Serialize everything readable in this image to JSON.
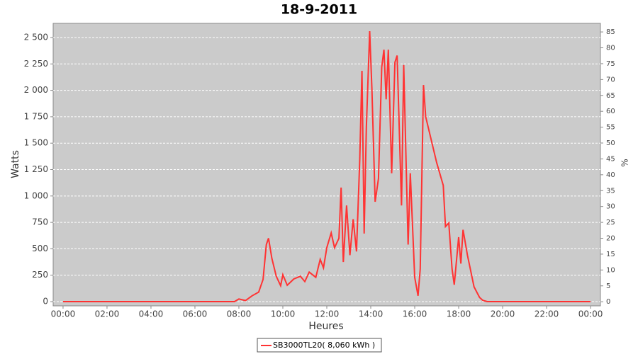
{
  "chart_data": {
    "type": "line",
    "title": "18-9-2011",
    "x_label": "Heures",
    "y_label": "Watts",
    "y2_label": "%",
    "x": [
      0,
      7.8,
      8.0,
      8.3,
      8.6,
      8.9,
      9.1,
      9.25,
      9.35,
      9.5,
      9.7,
      9.9,
      10.0,
      10.2,
      10.5,
      10.8,
      11.0,
      11.2,
      11.5,
      11.7,
      11.85,
      12.0,
      12.2,
      12.35,
      12.55,
      12.65,
      12.75,
      12.9,
      13.05,
      13.2,
      13.35,
      13.5,
      13.6,
      13.7,
      13.8,
      13.95,
      14.05,
      14.2,
      14.35,
      14.5,
      14.6,
      14.7,
      14.8,
      14.95,
      15.1,
      15.2,
      15.4,
      15.5,
      15.7,
      15.8,
      16.0,
      16.15,
      16.25,
      16.4,
      16.5,
      17.0,
      17.3,
      17.4,
      17.55,
      17.7,
      17.8,
      18.0,
      18.1,
      18.2,
      18.4,
      18.7,
      18.95,
      19.1,
      19.3,
      24
    ],
    "series": [
      {
        "name": "SB3000TL20( 8,060 kWh )",
        "color": "#ff3333",
        "values": [
          0,
          0,
          25,
          10,
          55,
          90,
          210,
          540,
          600,
          410,
          240,
          150,
          255,
          155,
          215,
          240,
          190,
          280,
          230,
          400,
          320,
          510,
          650,
          510,
          600,
          1080,
          375,
          910,
          440,
          780,
          475,
          1345,
          2185,
          645,
          1650,
          2560,
          2020,
          945,
          1165,
          2220,
          2385,
          1915,
          2385,
          1215,
          2265,
          2330,
          910,
          2240,
          540,
          1215,
          230,
          55,
          310,
          2050,
          1750,
          1315,
          1100,
          710,
          745,
          310,
          160,
          610,
          360,
          680,
          440,
          140,
          40,
          12,
          0,
          0
        ]
      }
    ],
    "xlim": [
      -0.45,
      24.45
    ],
    "xticks": [
      {
        "value": 0,
        "label": "00:00"
      },
      {
        "value": 2,
        "label": "02:00"
      },
      {
        "value": 4,
        "label": "04:00"
      },
      {
        "value": 6,
        "label": "06:00"
      },
      {
        "value": 8,
        "label": "08:00"
      },
      {
        "value": 10,
        "label": "10:00"
      },
      {
        "value": 12,
        "label": "12:00"
      },
      {
        "value": 14,
        "label": "14:00"
      },
      {
        "value": 16,
        "label": "16:00"
      },
      {
        "value": 18,
        "label": "18:00"
      },
      {
        "value": 20,
        "label": "20:00"
      },
      {
        "value": 22,
        "label": "22:00"
      },
      {
        "value": 24,
        "label": "00:00"
      }
    ],
    "ylim": [
      -40,
      2634
    ],
    "yticks": [
      0,
      250,
      500,
      750,
      {
        "value": 1000,
        "label": "1 000"
      },
      {
        "value": 1250,
        "label": "1 250"
      },
      {
        "value": 1500,
        "label": "1 500"
      },
      {
        "value": 1750,
        "label": "1 750"
      },
      {
        "value": 2000,
        "label": "2 000"
      },
      {
        "value": 2250,
        "label": "2 250"
      },
      {
        "value": 2500,
        "label": "2 500"
      }
    ],
    "y2lim": [
      -1.3,
      87.7
    ],
    "y2ticks": [
      0,
      5,
      10,
      15,
      20,
      25,
      30,
      35,
      40,
      45,
      50,
      55,
      60,
      65,
      70,
      75,
      80,
      85
    ],
    "grid": true,
    "legend": "bottom"
  }
}
